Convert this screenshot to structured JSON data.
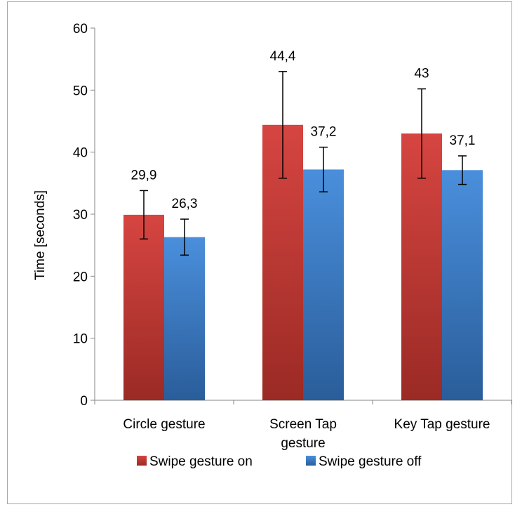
{
  "chart_data": {
    "type": "bar",
    "title": "",
    "xlabel": "",
    "ylabel": "Time [seconds]",
    "ylim": [
      0,
      60
    ],
    "yticks": [
      0,
      10,
      20,
      30,
      40,
      50,
      60
    ],
    "categories": [
      [
        "Circle gesture"
      ],
      [
        "Screen Tap",
        "gesture"
      ],
      [
        "Key Tap gesture"
      ]
    ],
    "series": [
      {
        "name": "Swipe gesture on",
        "color": "#c0392b",
        "values": [
          29.9,
          44.4,
          43
        ],
        "labels": [
          "29,9",
          "44,4",
          "43"
        ],
        "error_low": [
          26.0,
          35.8,
          35.8
        ],
        "error_high": [
          33.8,
          53.0,
          50.2
        ]
      },
      {
        "name": "Swipe gesture off",
        "color": "#3a7bc8",
        "values": [
          26.3,
          37.2,
          37.1
        ],
        "labels": [
          "26,3",
          "37,2",
          "37,1"
        ],
        "error_low": [
          23.4,
          33.6,
          34.8
        ],
        "error_high": [
          29.2,
          40.8,
          39.4
        ]
      }
    ],
    "legend_position": "bottom",
    "grid": false
  }
}
